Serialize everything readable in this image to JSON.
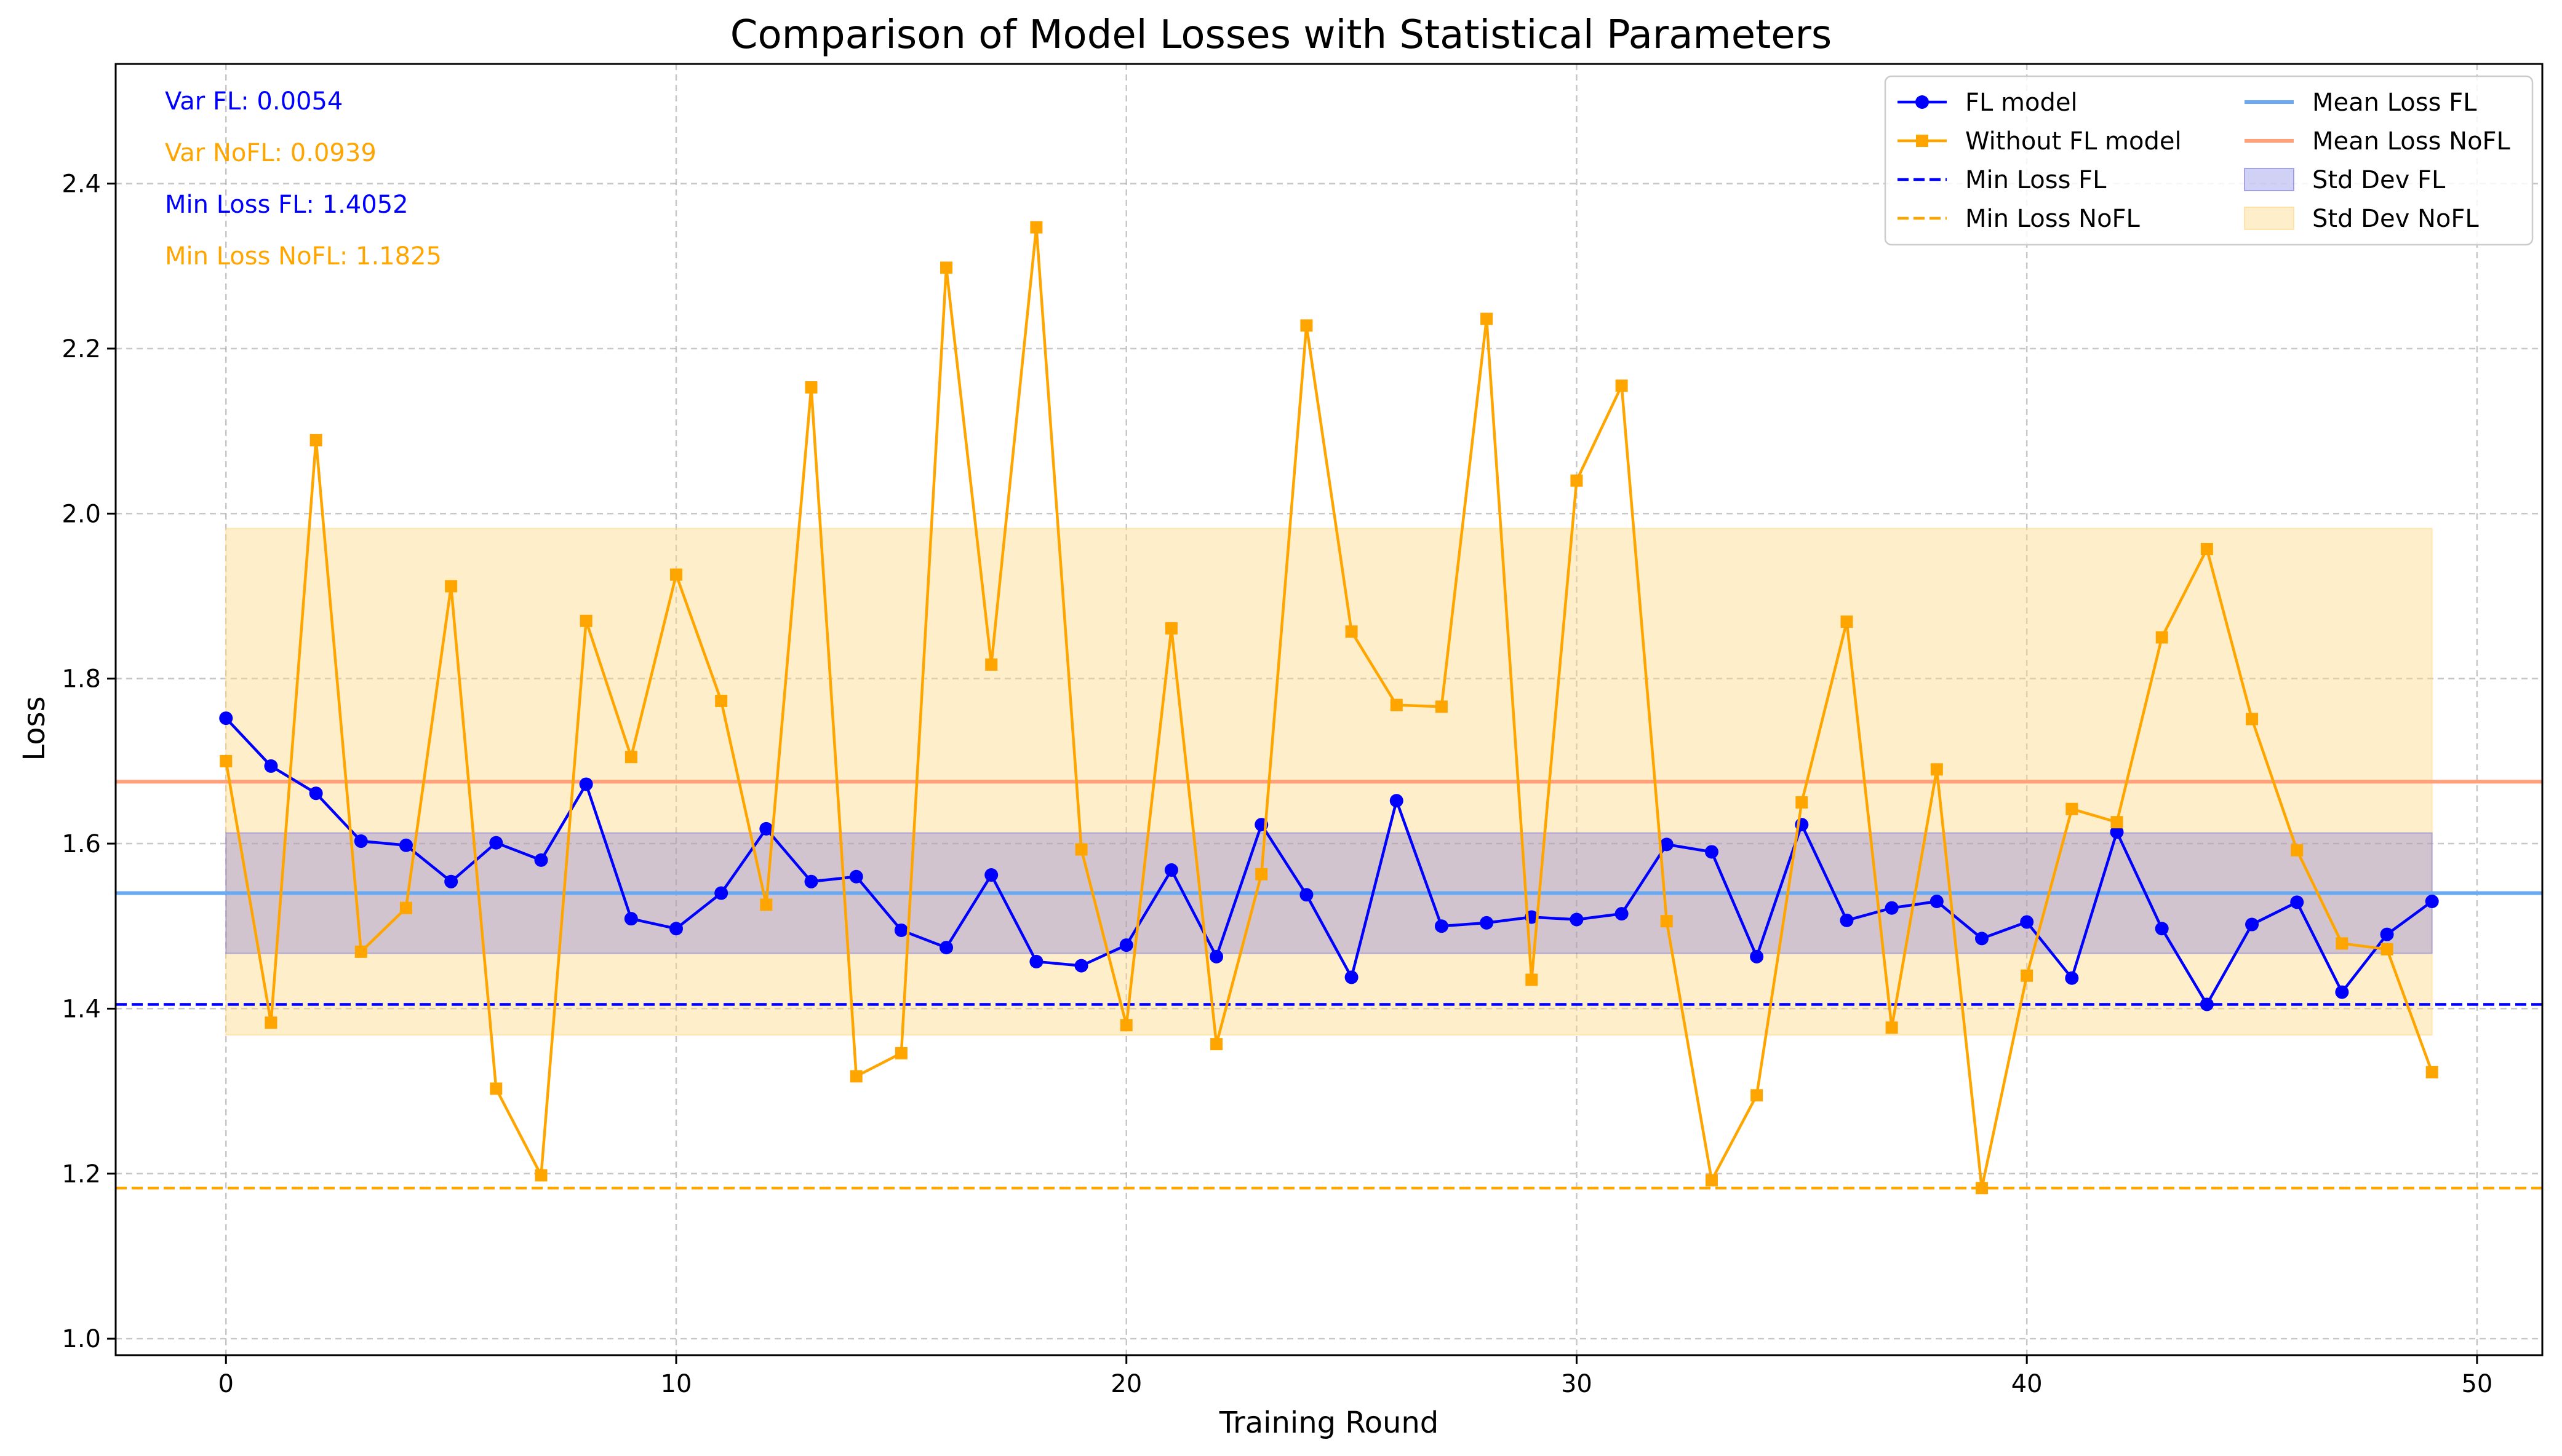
{
  "chart_data": {
    "type": "line",
    "title": "Comparison of Model Losses with Statistical Parameters",
    "xlabel": "Training Round",
    "ylabel": "Loss",
    "xlim": [
      -2.45,
      51.45
    ],
    "ylim": [
      0.98,
      2.545
    ],
    "xticks": [
      0,
      10,
      20,
      30,
      40,
      50
    ],
    "yticks": [
      1.0,
      1.2,
      1.4,
      1.6,
      1.8,
      2.0,
      2.2,
      2.4
    ],
    "grid": true,
    "legend_position": "top-right",
    "x": [
      0,
      1,
      2,
      3,
      4,
      5,
      6,
      7,
      8,
      9,
      10,
      11,
      12,
      13,
      14,
      15,
      16,
      17,
      18,
      19,
      20,
      21,
      22,
      23,
      24,
      25,
      26,
      27,
      28,
      29,
      30,
      31,
      32,
      33,
      34,
      35,
      36,
      37,
      38,
      39,
      40,
      41,
      42,
      43,
      44,
      45,
      46,
      47,
      48,
      49
    ],
    "series": [
      {
        "name": "FL model",
        "color": "#0000ff",
        "marker": "circle",
        "values": [
          1.752,
          1.694,
          1.661,
          1.603,
          1.598,
          1.554,
          1.601,
          1.58,
          1.672,
          1.509,
          1.497,
          1.54,
          1.618,
          1.554,
          1.56,
          1.495,
          1.474,
          1.562,
          1.457,
          1.452,
          1.477,
          1.568,
          1.463,
          1.623,
          1.538,
          1.438,
          1.652,
          1.5,
          1.504,
          1.511,
          1.508,
          1.515,
          1.599,
          1.59,
          1.463,
          1.623,
          1.507,
          1.522,
          1.53,
          1.485,
          1.505,
          1.437,
          1.614,
          1.497,
          1.4052,
          1.502,
          1.529,
          1.42,
          1.49,
          1.53
        ]
      },
      {
        "name": "Without FL model",
        "color": "#ffa500",
        "marker": "square",
        "values": [
          1.7,
          1.383,
          2.089,
          1.469,
          1.522,
          1.912,
          1.303,
          1.198,
          1.87,
          1.705,
          1.926,
          1.773,
          1.526,
          2.153,
          1.318,
          1.346,
          2.298,
          1.817,
          2.347,
          1.593,
          1.38,
          1.861,
          1.357,
          1.563,
          2.228,
          1.857,
          1.768,
          1.766,
          2.236,
          1.435,
          2.04,
          2.155,
          1.506,
          1.192,
          1.295,
          1.65,
          1.869,
          1.377,
          1.69,
          1.1825,
          1.44,
          1.642,
          1.626,
          1.85,
          1.957,
          1.751,
          1.592,
          1.479,
          1.472,
          1.323
        ]
      }
    ],
    "lines": [
      {
        "name": "Min Loss FL",
        "color": "#0000ff",
        "style": "dashed",
        "value": 1.4052
      },
      {
        "name": "Min Loss NoFL",
        "color": "#ffa500",
        "style": "dashed",
        "value": 1.1825
      },
      {
        "name": "Mean Loss FL",
        "color": "#6aaaf2",
        "style": "solid",
        "value": 1.54
      },
      {
        "name": "Mean Loss NoFL",
        "color": "#ffa07a",
        "style": "solid",
        "value": 1.675
      }
    ],
    "bands": [
      {
        "name": "Std Dev NoFL",
        "color": "#ffd98a",
        "opacity": 0.45,
        "low": 1.368,
        "high": 1.982,
        "x_range": [
          0,
          49
        ]
      },
      {
        "name": "Std Dev FL",
        "color": "#5a5ae0",
        "opacity": 0.28,
        "low": 1.467,
        "high": 1.613,
        "x_range": [
          0,
          49
        ]
      }
    ],
    "annotations": [
      {
        "text": "Var FL: 0.0054",
        "color": "#0000ff"
      },
      {
        "text": "Var NoFL: 0.0939",
        "color": "#ffa500"
      },
      {
        "text": "Min Loss FL: 1.4052",
        "color": "#0000ff"
      },
      {
        "text": "Min Loss NoFL: 1.1825",
        "color": "#ffa500"
      }
    ],
    "legend_order": [
      "FL model",
      "Without FL model",
      "Min Loss FL",
      "Min Loss NoFL",
      "Mean Loss FL",
      "Mean Loss NoFL",
      "Std Dev FL",
      "Std Dev NoFL"
    ]
  }
}
